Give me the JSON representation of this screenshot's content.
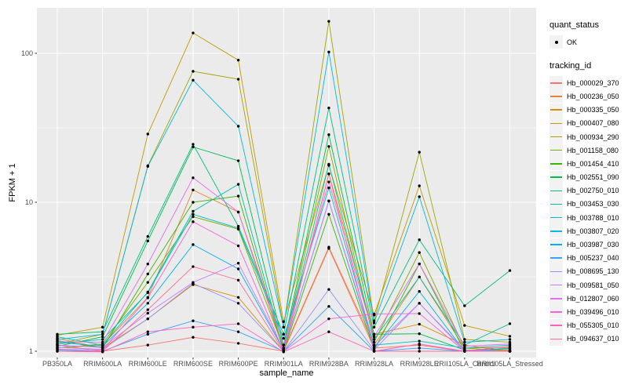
{
  "style": {
    "panel_bg": "#EBEBEB",
    "grid_color": "#FFFFFF",
    "key_bg": "#F2F2F2",
    "point_color": "#000000",
    "tick_text_color": "#4D4D4D",
    "title_text_color": "#000000"
  },
  "chart_data": {
    "type": "line",
    "title": "",
    "xlabel": "sample_name",
    "ylabel": "FPKM + 1",
    "y_scale": "log10",
    "grid": true,
    "y_ticks": [
      1,
      10,
      100
    ],
    "y_minor_ticks": [
      3.162,
      31.62
    ],
    "ylim": [
      1,
      200
    ],
    "legend_position": "right",
    "categories": [
      "PB350LA",
      "RRIM600LA",
      "RRIM600LE",
      "RRIM600SE",
      "RRIM600PE",
      "RRIM901LA",
      "RRIM928BA",
      "RRIM928LA",
      "RRIM928LE",
      "RRII105LA_Control",
      "RRII105LA_Stressed"
    ],
    "legends": [
      {
        "title": "quant_status",
        "entries": [
          {
            "label": "OK",
            "marker": "point",
            "color": "#000000"
          }
        ]
      },
      {
        "title": "tracking_id",
        "entries_from_series": true
      }
    ],
    "series": [
      {
        "name": "Hb_000029_370",
        "color": "#F8766D",
        "values": [
          1.1,
          1.0,
          1.1,
          1.24,
          1.13,
          1.0,
          4.9,
          1.05,
          1.1,
          1.0,
          1.02
        ]
      },
      {
        "name": "Hb_000236_050",
        "color": "#EA8331",
        "values": [
          1.05,
          1.1,
          2.3,
          12.1,
          8.6,
          1.02,
          5.0,
          1.1,
          3.15,
          1.05,
          1.06
        ]
      },
      {
        "name": "Hb_000335_050",
        "color": "#D89000",
        "values": [
          1.22,
          1.05,
          1.65,
          2.8,
          2.3,
          1.0,
          15.5,
          1.3,
          1.52,
          1.1,
          1.0
        ]
      },
      {
        "name": "Hb_000407_080",
        "color": "#C09B00",
        "values": [
          1.28,
          1.45,
          28.7,
          137,
          90,
          1.58,
          17.7,
          1.75,
          12.9,
          1.49,
          1.26
        ]
      },
      {
        "name": "Hb_000934_290",
        "color": "#A3A500",
        "values": [
          1.12,
          1.3,
          17.6,
          75.7,
          67,
          1.45,
          164,
          1.6,
          21.7,
          1.2,
          1.15
        ]
      },
      {
        "name": "Hb_001158_080",
        "color": "#7CAE00",
        "values": [
          1.05,
          1.12,
          2.9,
          8.0,
          6.6,
          1.05,
          23.7,
          1.15,
          4.6,
          1.05,
          1.0
        ]
      },
      {
        "name": "Hb_001454_410",
        "color": "#39B600",
        "values": [
          1.18,
          1.05,
          3.3,
          10.0,
          11.0,
          1.0,
          8.3,
          1.02,
          3.86,
          1.0,
          1.05
        ]
      },
      {
        "name": "Hb_002551_090",
        "color": "#00BB4E",
        "values": [
          1.08,
          1.25,
          5.5,
          23.5,
          19.0,
          1.1,
          28.4,
          1.3,
          1.31,
          1.02,
          1.0
        ]
      },
      {
        "name": "Hb_002750_010",
        "color": "#00BF7D",
        "values": [
          1.3,
          1.35,
          5.9,
          24.5,
          6.9,
          1.3,
          43.0,
          1.45,
          5.6,
          2.02,
          3.48
        ]
      },
      {
        "name": "Hb_003453_030",
        "color": "#00C1A3",
        "values": [
          1.25,
          1.1,
          2.5,
          8.7,
          13.2,
          1.05,
          18.0,
          1.2,
          3.15,
          1.1,
          1.53
        ]
      },
      {
        "name": "Hb_003788_010",
        "color": "#00BFC4",
        "values": [
          1.12,
          1.2,
          2.47,
          8.3,
          6.7,
          1.22,
          12.5,
          1.1,
          1.17,
          1.05,
          1.1
        ]
      },
      {
        "name": "Hb_003807_020",
        "color": "#00BAE0",
        "values": [
          1.2,
          1.3,
          17.4,
          66.0,
          32.4,
          1.45,
          102,
          1.55,
          10.9,
          1.15,
          1.2
        ]
      },
      {
        "name": "Hb_003987_030",
        "color": "#00B0F6",
        "values": [
          1.15,
          1.08,
          2.1,
          5.2,
          3.57,
          1.02,
          10.2,
          1.05,
          2.52,
          1.0,
          1.04
        ]
      },
      {
        "name": "Hb_005237_040",
        "color": "#35A2FF",
        "values": [
          1.02,
          1.0,
          1.3,
          1.6,
          1.35,
          1.0,
          2.0,
          1.0,
          1.05,
          1.0,
          1.0
        ]
      },
      {
        "name": "Hb_008695_130",
        "color": "#9590FF",
        "values": [
          1.06,
          1.03,
          1.65,
          2.85,
          2.1,
          1.0,
          2.6,
          1.02,
          2.1,
          1.0,
          1.0
        ]
      },
      {
        "name": "Hb_009581_050",
        "color": "#C77CFF",
        "values": [
          1.1,
          1.06,
          1.8,
          2.9,
          3.9,
          1.03,
          10.2,
          1.08,
          2.1,
          1.02,
          1.0
        ]
      },
      {
        "name": "Hb_012807_060",
        "color": "#E76BF3",
        "values": [
          1.16,
          1.15,
          3.85,
          14.6,
          8.6,
          1.1,
          13.7,
          1.25,
          3.86,
          1.08,
          1.12
        ]
      },
      {
        "name": "Hb_039496_010",
        "color": "#FA62DB",
        "values": [
          1.03,
          1.02,
          2.28,
          7.4,
          5.1,
          1.0,
          1.65,
          1.78,
          1.79,
          1.0,
          1.0
        ]
      },
      {
        "name": "Hb_055305_010",
        "color": "#FF62BC",
        "values": [
          1.0,
          0.99,
          1.35,
          1.45,
          1.53,
          0.99,
          1.35,
          1.0,
          1.12,
          1.0,
          1.08
        ]
      },
      {
        "name": "Hb_094637_010",
        "color": "#FF6A98",
        "values": [
          1.0,
          1.0,
          1.9,
          3.7,
          3.0,
          1.0,
          15.5,
          1.0,
          1.0,
          1.0,
          1.0
        ]
      }
    ]
  }
}
